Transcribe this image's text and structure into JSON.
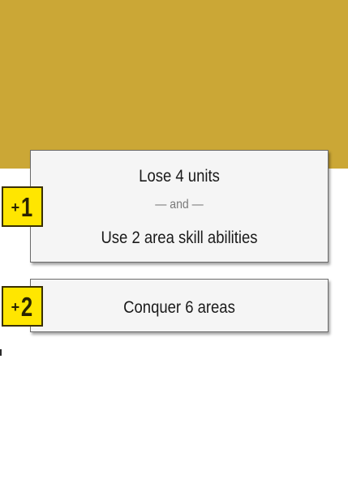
{
  "colors": {
    "top_band": "#cba736",
    "badge": "#ffe600",
    "card_bg": "#f5f5f5"
  },
  "rewards": [
    {
      "badge_plus": "+",
      "badge_value": "1",
      "condition_1": "Lose 4 units",
      "separator": "— and —",
      "condition_2": "Use 2 area skill abilities"
    },
    {
      "badge_plus": "+",
      "badge_value": "2",
      "condition_1": "Conquer 6 areas"
    }
  ]
}
